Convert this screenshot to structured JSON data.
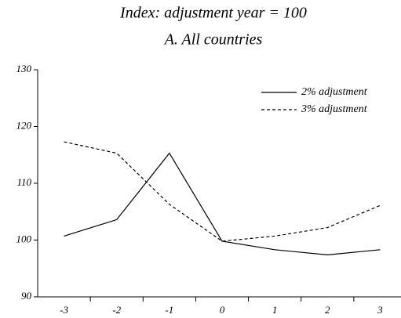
{
  "chart_data": {
    "type": "line",
    "title": "Index: adjustment year = 100",
    "subtitle": "A. All countries",
    "categories": [
      "-3",
      "-2",
      "-1",
      "0",
      "1",
      "2",
      "3"
    ],
    "series": [
      {
        "name": "2% adjustment",
        "color": "#000000",
        "dash": "none",
        "values": [
          100.7,
          103.6,
          115.3,
          99.8,
          98.3,
          97.4,
          98.3
        ]
      },
      {
        "name": "3% adjustment",
        "color": "#000000",
        "dash": "4,3",
        "values": [
          117.3,
          115.3,
          106.3,
          99.8,
          100.7,
          102.2,
          106.1
        ]
      }
    ],
    "ylim": [
      90,
      130
    ],
    "yticks": [
      90,
      100,
      110,
      120,
      130
    ],
    "legend": "top-right"
  }
}
